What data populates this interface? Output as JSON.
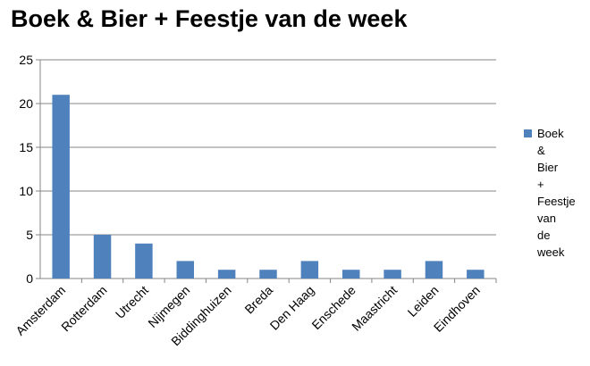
{
  "chart_data": {
    "type": "bar",
    "title": "Boek & Bier + Feestje van de week",
    "categories": [
      "Amsterdam",
      "Rotterdam",
      "Utrecht",
      "Nijmegen",
      "Biddinghuizen",
      "Breda",
      "Den Haag",
      "Enschede",
      "Maastricht",
      "Leiden",
      "Eindhoven"
    ],
    "series": [
      {
        "name": "Boek & Bier + Feestje van de week",
        "values": [
          21,
          5,
          4,
          2,
          1,
          1,
          2,
          1,
          1,
          2,
          1
        ],
        "color": "#4F81BD"
      }
    ],
    "yticks": [
      "0",
      "5",
      "10",
      "15",
      "20",
      "25"
    ],
    "ylim": [
      0,
      25
    ],
    "grid": true,
    "legend_position": "right"
  }
}
